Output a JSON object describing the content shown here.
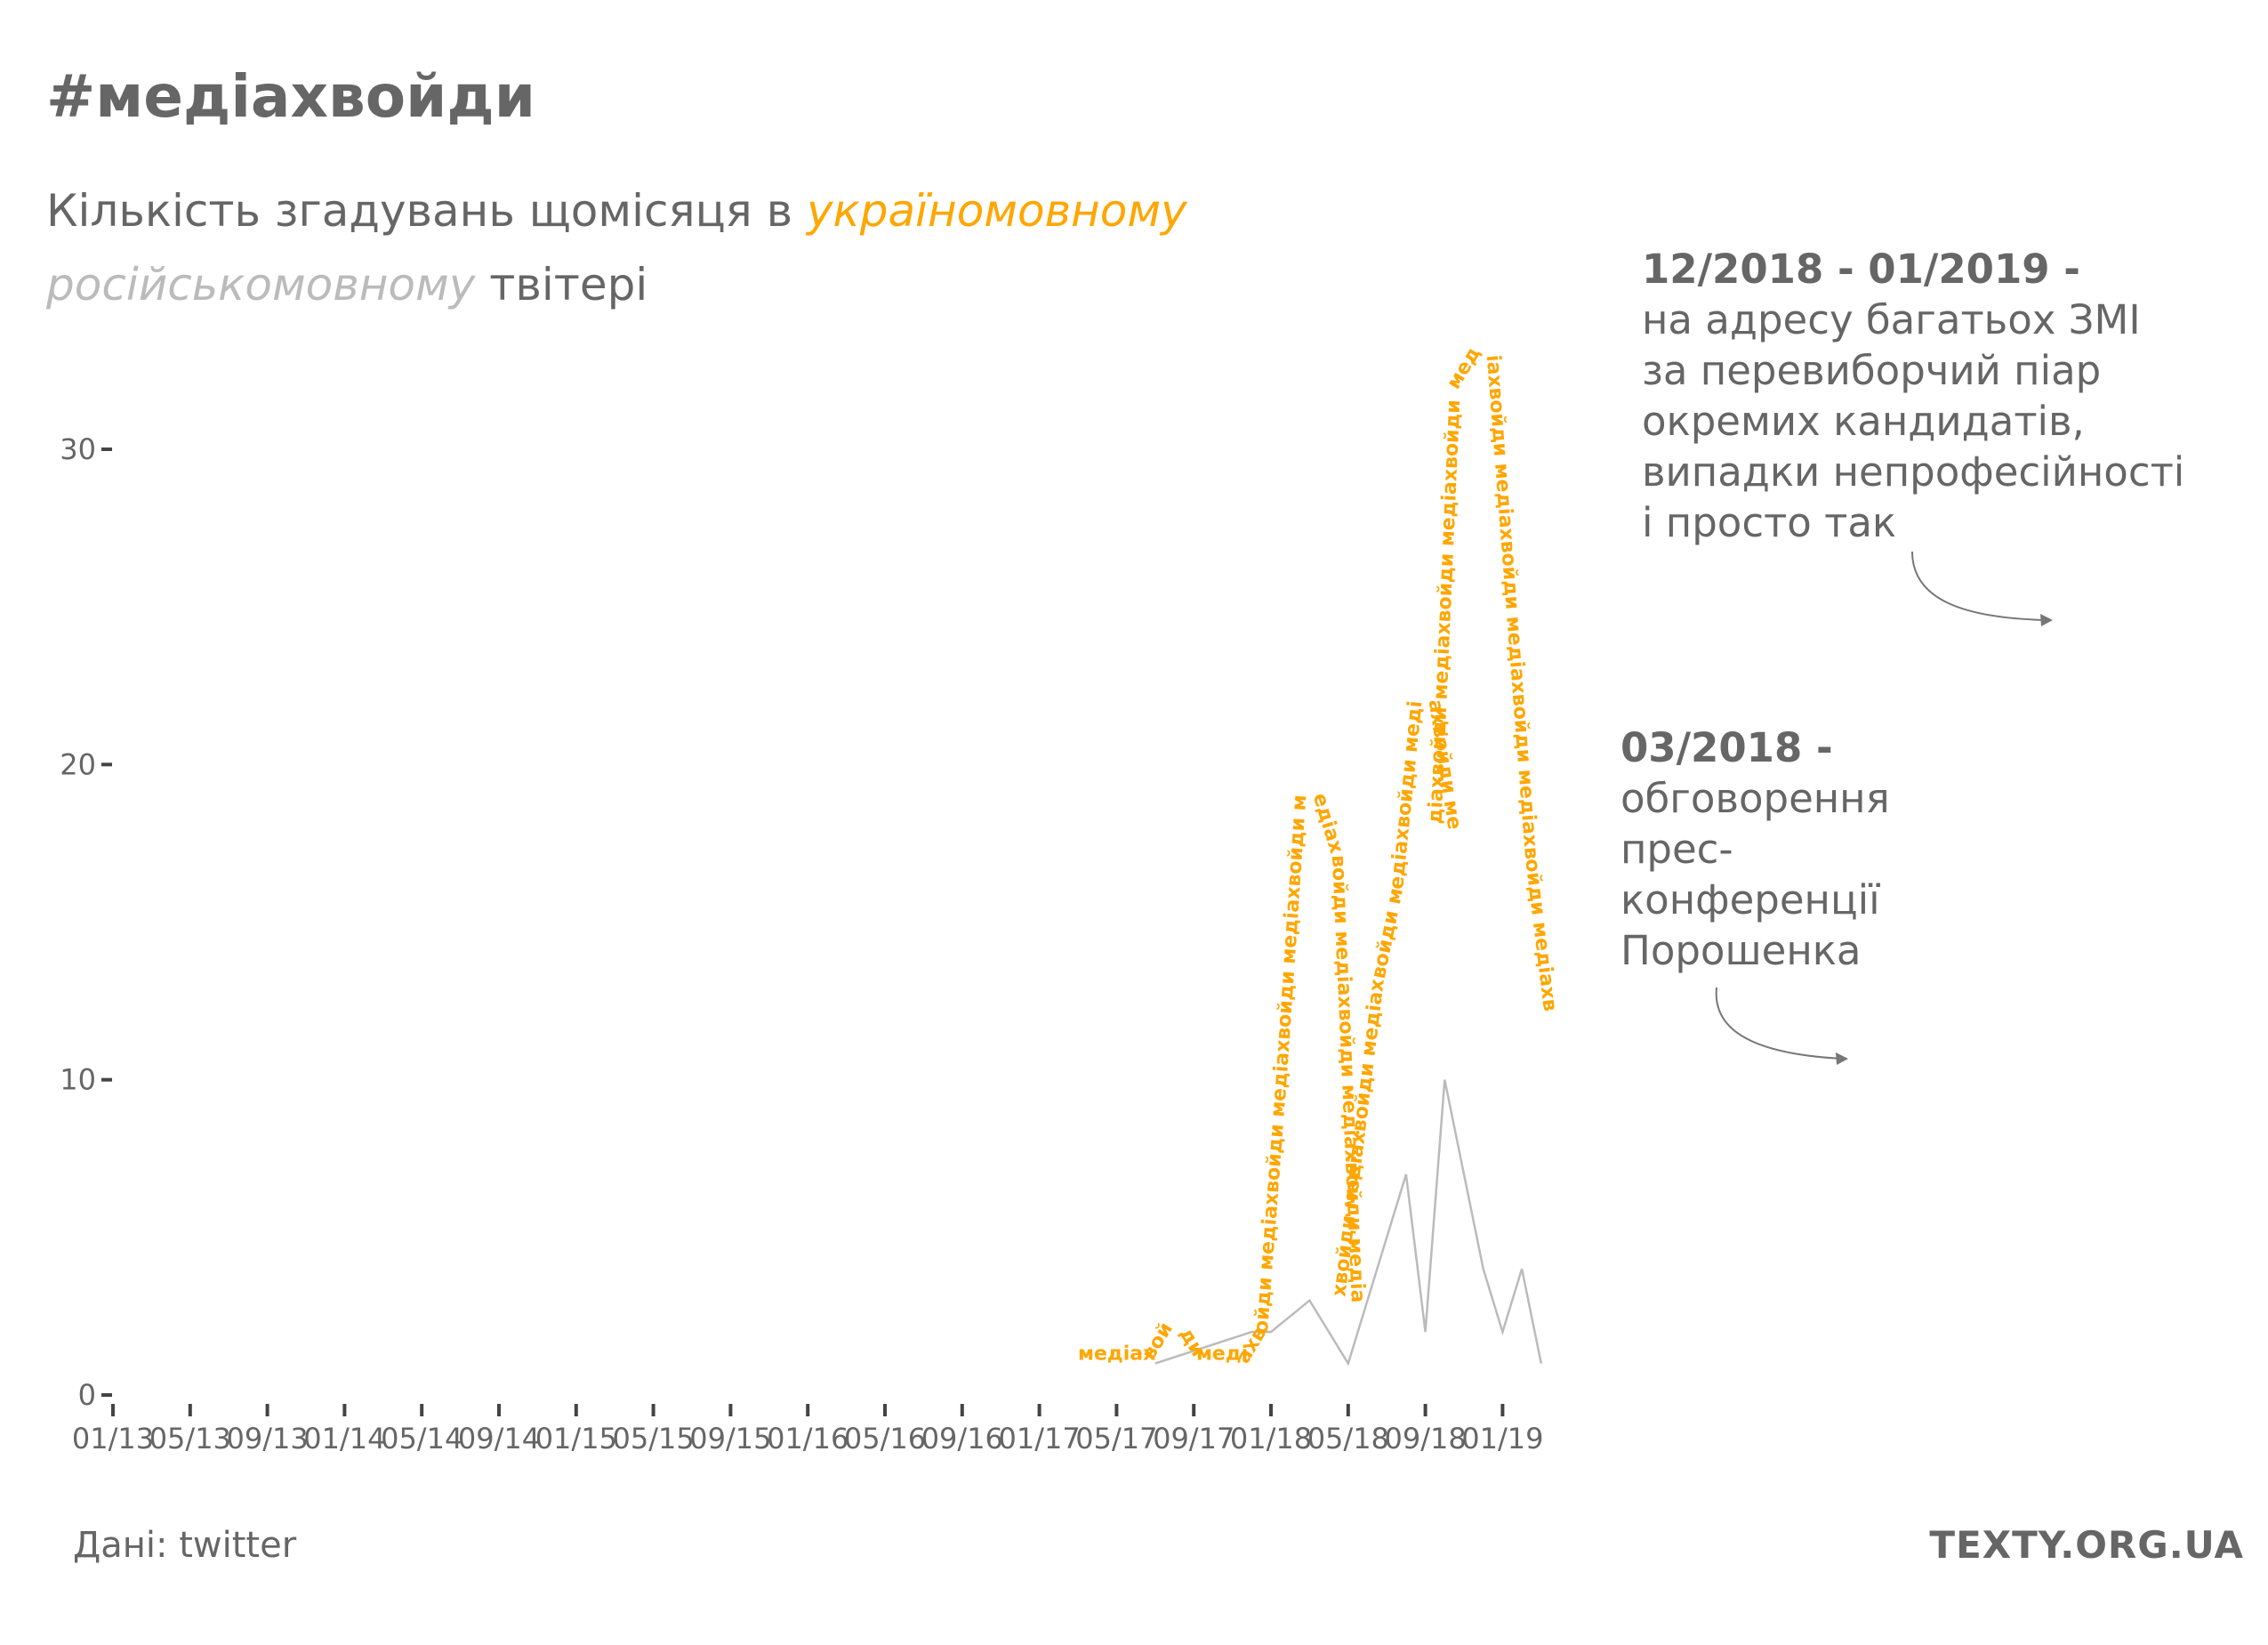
{
  "title": "#медіахвойди",
  "subtitle": {
    "line1_prefix": "Кількість згадувань щомісяця в ",
    "line1_highlight": "україномовному",
    "line2_highlight": "російськомовному",
    "line2_suffix": " твітері"
  },
  "annotations": [
    {
      "heading": "03/2018 -",
      "lines": [
        "обговорення",
        "прес-",
        "конференції",
        "Порошенка"
      ]
    },
    {
      "heading": "12/2018 - 01/2019 -",
      "lines": [
        "на адресу багатьох ЗМІ",
        "за перевиборчий піар",
        "окремих кандидатів,",
        "випадки непрофесійності",
        "і просто так"
      ]
    }
  ],
  "footer": {
    "source": "Дані: twitter",
    "brand": "TEXTY.ORG.UA"
  },
  "colors": {
    "ukrainian": "#ffa600",
    "russian": "#bbbbbb",
    "text": "#666666"
  },
  "chart_data": {
    "type": "line",
    "title": "#медіахвойди",
    "xlabel": "",
    "ylabel": "",
    "ylim": [
      0,
      30
    ],
    "y_ticks": [
      0,
      10,
      20,
      30
    ],
    "x_ticks": [
      "01/13",
      "05/13",
      "09/13",
      "01/14",
      "05/14",
      "09/14",
      "01/15",
      "05/15",
      "09/15",
      "01/16",
      "05/16",
      "09/16",
      "01/17",
      "05/17",
      "09/17",
      "01/18",
      "05/18",
      "09/18",
      "01/19"
    ],
    "grid": false,
    "ukrainian_text_path_label": "медіахвойди",
    "series": [
      {
        "name": "україномовному",
        "style": "text-path",
        "x": [
          "03/17",
          "04/17",
          "05/17",
          "06/17",
          "07/17",
          "08/17",
          "09/17",
          "10/17",
          "11/17",
          "12/17",
          "01/18",
          "02/18",
          "03/18",
          "04/18",
          "05/18",
          "06/18",
          "07/18",
          "08/18",
          "09/18",
          "10/18",
          "11/18",
          "12/18",
          "01/19",
          "02/19",
          "03/19"
        ],
        "values": [
          1,
          1,
          1,
          1,
          1,
          2,
          1,
          1,
          1,
          1,
          2,
          10,
          19,
          17,
          3,
          8,
          13,
          16,
          22,
          18,
          32,
          33,
          25,
          17,
          12
        ]
      },
      {
        "name": "російськомовному",
        "style": "line",
        "x": [
          "07/17",
          "08/17",
          "09/17",
          "10/17",
          "11/17",
          "12/17",
          "01/18",
          "02/18",
          "03/18",
          "04/18",
          "05/18",
          "06/18",
          "07/18",
          "08/18",
          "09/18",
          "10/18",
          "11/18",
          "12/18",
          "01/19",
          "02/19",
          "03/19"
        ],
        "values": [
          1,
          1.2,
          1.4,
          1.6,
          1.8,
          2,
          2,
          2.5,
          3,
          2,
          1,
          3,
          5,
          7,
          2,
          10,
          7,
          4,
          2,
          4,
          1
        ]
      }
    ]
  }
}
